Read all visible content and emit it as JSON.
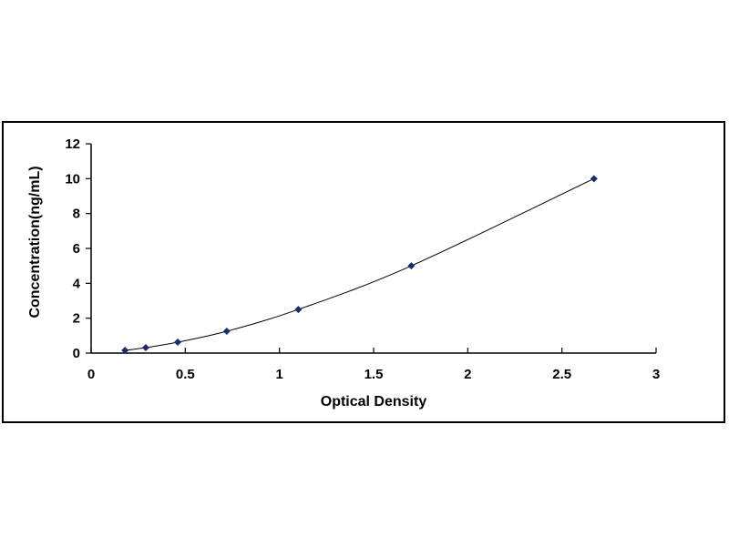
{
  "chart_data": {
    "type": "scatter",
    "title": "",
    "xlabel": "Optical Density",
    "ylabel": "Concentration(ng/mL)",
    "xlim": [
      0,
      3
    ],
    "ylim": [
      0,
      12
    ],
    "x_ticks": [
      "0",
      "0.5",
      "1",
      "1.5",
      "2",
      "2.5",
      "3"
    ],
    "y_ticks": [
      "0",
      "2",
      "4",
      "6",
      "8",
      "10",
      "12"
    ],
    "grid": false,
    "legend": "none",
    "fit_line": true,
    "series": [
      {
        "x": [
          0.18,
          0.29,
          0.46,
          0.72,
          1.1,
          1.7,
          2.67
        ],
        "y": [
          0.156,
          0.312,
          0.625,
          1.25,
          2.5,
          5,
          10
        ],
        "color": "#1f2a6e"
      }
    ]
  }
}
